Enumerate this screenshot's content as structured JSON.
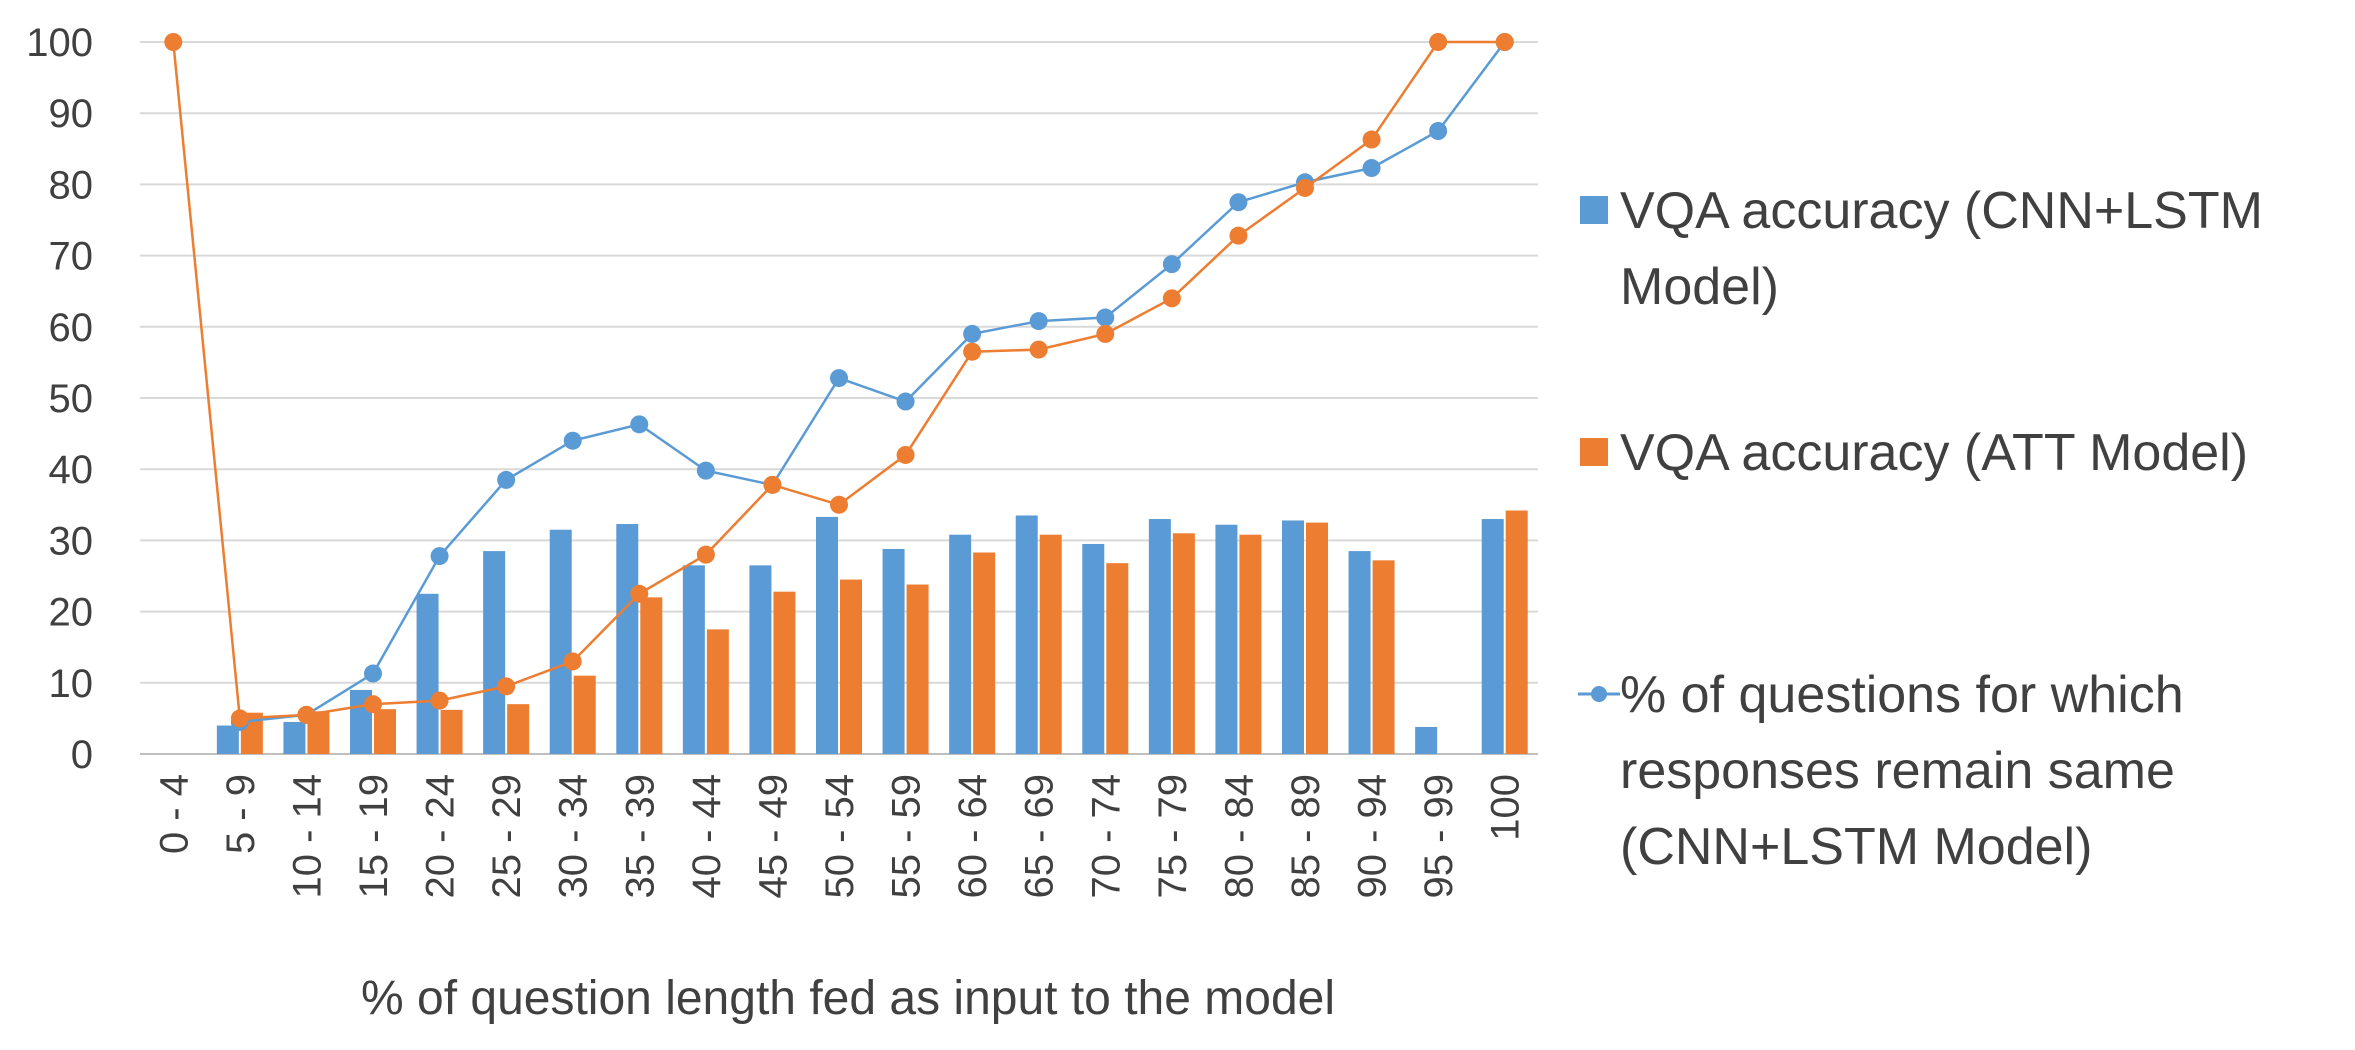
{
  "chart_data": {
    "type": "bar",
    "title": "",
    "xlabel": "% of question length fed as input to the model",
    "ylabel": "",
    "ylim": [
      0,
      100
    ],
    "yticks": [
      0,
      10,
      20,
      30,
      40,
      50,
      60,
      70,
      80,
      90,
      100
    ],
    "grid": true,
    "legend_position": "right",
    "categories": [
      "0 - 4",
      "5 - 9",
      "10 - 14",
      "15 - 19",
      "20 - 24",
      "25 - 29",
      "30 - 34",
      "35 - 39",
      "40 - 44",
      "45 - 49",
      "50 - 54",
      "55 - 59",
      "60 - 64",
      "65 - 69",
      "70 - 74",
      "75 - 79",
      "80 - 84",
      "85 - 89",
      "90 - 94",
      "95 - 99",
      "100"
    ],
    "series": [
      {
        "name": "VQA accuracy (CNN+LSTM Model)",
        "kind": "bar",
        "color": "#5b9bd5",
        "values": [
          null,
          4,
          4.5,
          9,
          22.5,
          28.5,
          31.5,
          32.3,
          26.5,
          26.5,
          33.3,
          28.8,
          30.8,
          33.5,
          29.5,
          33,
          32.2,
          32.8,
          28.5,
          3.8,
          33
        ]
      },
      {
        "name": "VQA accuracy (ATT Model)",
        "kind": "bar",
        "color": "#ed7d31",
        "values": [
          null,
          5.8,
          6,
          6.3,
          6.2,
          7,
          11,
          22,
          17.5,
          22.8,
          24.5,
          23.8,
          28.3,
          30.8,
          26.8,
          31,
          30.8,
          32.5,
          27.2,
          null,
          34.2
        ]
      },
      {
        "name": "% of questions for which responses remain same (CNN+LSTM Model)",
        "kind": "line",
        "color": "#5b9bd5",
        "values": [
          null,
          4.5,
          5.5,
          11.3,
          27.8,
          38.5,
          44,
          46.3,
          39.8,
          37.8,
          52.8,
          49.5,
          59,
          60.8,
          61.3,
          68.8,
          77.5,
          80.3,
          82.3,
          87.5,
          100
        ]
      },
      {
        "name": "",
        "kind": "line",
        "color": "#ed7d31",
        "values": [
          100,
          5,
          5.5,
          7,
          7.5,
          9.5,
          13,
          22.5,
          28,
          37.8,
          35,
          42,
          56.5,
          56.8,
          59,
          64,
          72.8,
          79.5,
          86.3,
          100,
          100
        ]
      }
    ]
  },
  "legend": {
    "items": [
      {
        "lines": [
          "VQA accuracy (CNN+LSTM",
          "Model)"
        ]
      },
      {
        "lines": [
          "VQA accuracy (ATT Model)"
        ]
      },
      {
        "lines": [
          "% of questions for which",
          "responses remain same",
          "(CNN+LSTM Model)"
        ]
      }
    ]
  }
}
